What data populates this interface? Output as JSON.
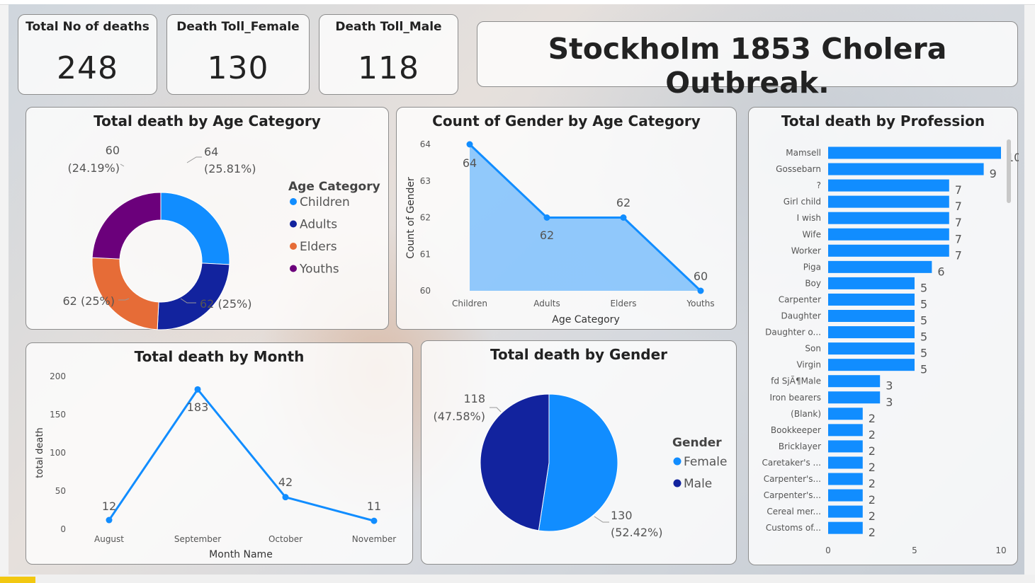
{
  "title": "Stockholm 1853 Cholera Outbreak.",
  "kpis": [
    {
      "label": "Total No of deaths",
      "value": "248"
    },
    {
      "label": "Death Toll_Female",
      "value": "130"
    },
    {
      "label": "Death Toll_Male",
      "value": "118"
    }
  ],
  "colors": {
    "children": "#118dff",
    "adults": "#12239e",
    "elders": "#e66c37",
    "youths": "#6b007b",
    "female": "#118dff",
    "male": "#12239e",
    "bar": "#118dff"
  },
  "chart_data": [
    {
      "type": "pie",
      "title": "Total death by Age Category",
      "legend_title": "Age Category",
      "categories": [
        "Children",
        "Adults",
        "Elders",
        "Youths"
      ],
      "values": [
        64,
        62,
        62,
        60
      ],
      "labels": [
        [
          "64",
          "(25.81%)"
        ],
        [
          "62 (25%)"
        ],
        [
          "62 (25%)"
        ],
        [
          "60",
          "(24.19%)"
        ]
      ],
      "donut": true,
      "legend_position": "right"
    },
    {
      "type": "area",
      "title": "Count of Gender by Age Category",
      "categories": [
        "Children",
        "Adults",
        "Elders",
        "Youths"
      ],
      "values": [
        64,
        62,
        62,
        60
      ],
      "xlabel": "Age Category",
      "ylabel": "Count of Gender",
      "ylim": [
        60,
        64
      ],
      "yticks": [
        "60",
        "61",
        "62",
        "63",
        "64"
      ]
    },
    {
      "type": "bar",
      "orientation": "horizontal",
      "title": "Total death by Profession",
      "categories": [
        "Mamsell",
        "Gossebarn",
        "?",
        "Girl child",
        "I wish",
        "Wife",
        "Worker",
        "Piga",
        "Boy",
        "Carpenter",
        "Daughter",
        "Daughter o...",
        "Son",
        "Virgin",
        "fd SjÃ¶Male",
        "Iron bearers",
        "(Blank)",
        "Bookkeeper",
        "Bricklayer",
        "Caretaker's ...",
        "Carpenter's...",
        "Carpenter's...",
        "Cereal mer...",
        "Customs of..."
      ],
      "values": [
        10,
        9,
        7,
        7,
        7,
        7,
        7,
        6,
        5,
        5,
        5,
        5,
        5,
        5,
        3,
        3,
        2,
        2,
        2,
        2,
        2,
        2,
        2,
        2
      ],
      "xlim": [
        0,
        10
      ],
      "xticks": [
        "0",
        "5",
        "10"
      ]
    },
    {
      "type": "line",
      "title": "Total death by Month",
      "categories": [
        "August",
        "September",
        "October",
        "November"
      ],
      "values": [
        12,
        183,
        42,
        11
      ],
      "xlabel": "Month Name",
      "ylabel": "total death",
      "ylim": [
        0,
        200
      ],
      "yticks": [
        "0",
        "50",
        "100",
        "150",
        "200"
      ]
    },
    {
      "type": "pie",
      "title": "Total death by Gender",
      "legend_title": "Gender",
      "categories": [
        "Female",
        "Male"
      ],
      "values": [
        130,
        118
      ],
      "labels": [
        [
          "130",
          "(52.42%)"
        ],
        [
          "118",
          "(47.58%)"
        ]
      ],
      "legend_position": "right"
    }
  ]
}
